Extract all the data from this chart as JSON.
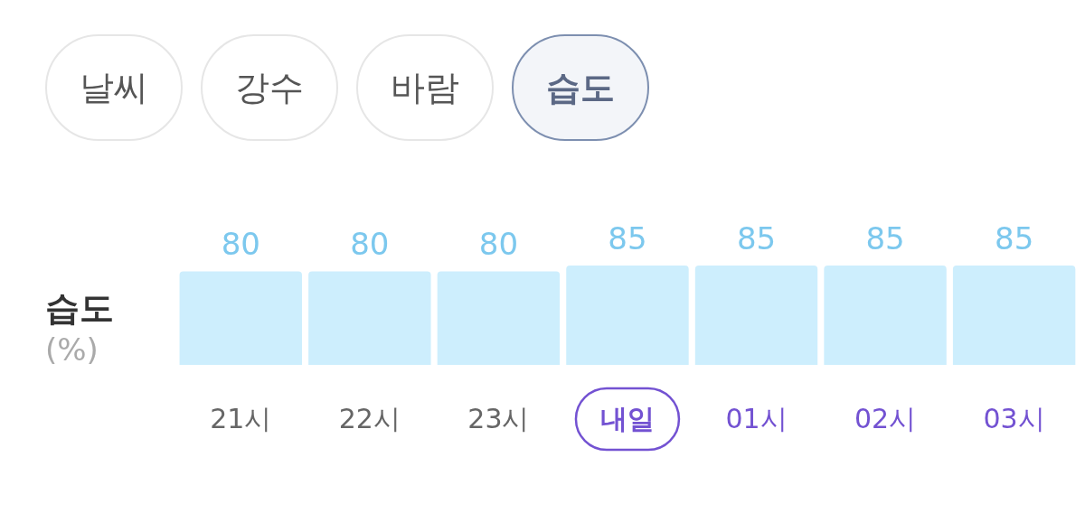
{
  "chart_data": {
    "type": "bar",
    "ylabel": "습도 (%)",
    "annotations": [
      "날씨",
      "강수",
      "바람",
      "습도"
    ],
    "categories": [
      "21시",
      "22시",
      "23시",
      "내일",
      "01시",
      "02시",
      "03시"
    ],
    "values": [
      80,
      80,
      80,
      85,
      85,
      85,
      85
    ],
    "color": "#cdeefd",
    "data_labels": true,
    "tick_labels": "x"
  }
}
